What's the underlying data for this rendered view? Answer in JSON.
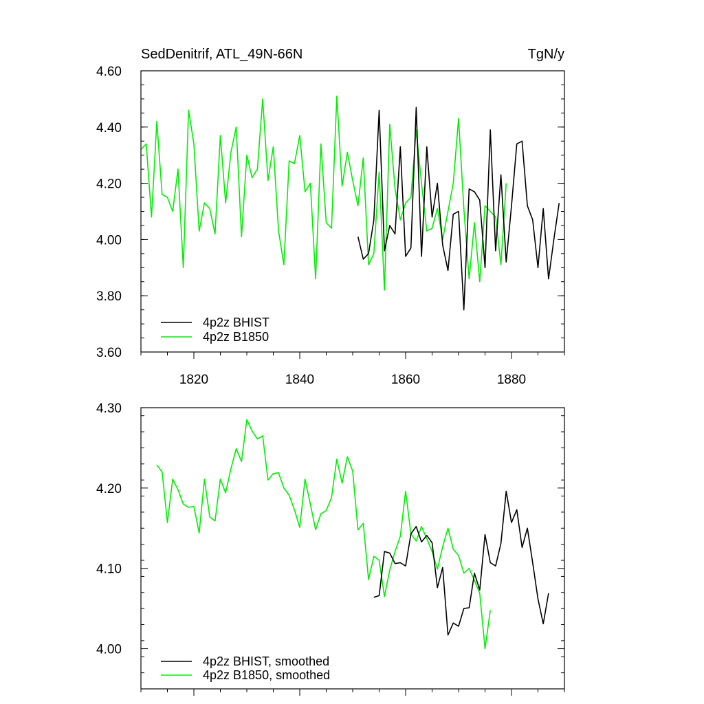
{
  "colors": {
    "bhist": "#000000",
    "b1850": "#00ee00"
  },
  "chart_data": [
    {
      "type": "line",
      "title_left": "SedDenitrif, ATL_49N-66N",
      "title_right": "TgN/y",
      "xlim": [
        1810,
        1890
      ],
      "ylim": [
        3.6,
        4.6
      ],
      "xticks": [
        1820,
        1840,
        1860,
        1880
      ],
      "xtick_labels": [
        "1820",
        "1840",
        "1860",
        "1880"
      ],
      "yticks": [
        3.6,
        3.8,
        4.0,
        4.2,
        4.4,
        4.6
      ],
      "ytick_labels": [
        "3.60",
        "3.80",
        "4.00",
        "4.20",
        "4.40",
        "4.60"
      ],
      "legend_position": "bottom-left",
      "series": [
        {
          "name": "4p2z BHIST",
          "color": "#000000",
          "x": [
            1851,
            1852,
            1853,
            1854,
            1855,
            1856,
            1857,
            1858,
            1859,
            1860,
            1861,
            1862,
            1863,
            1864,
            1865,
            1866,
            1867,
            1868,
            1869,
            1870,
            1871,
            1872,
            1873,
            1874,
            1875,
            1876,
            1877,
            1878,
            1879,
            1880,
            1881,
            1882,
            1883,
            1884,
            1885,
            1886,
            1887,
            1888,
            1889
          ],
          "y": [
            4.01,
            3.93,
            3.95,
            4.07,
            4.46,
            3.96,
            4.05,
            4.02,
            4.33,
            3.94,
            3.97,
            4.47,
            3.94,
            4.33,
            4.08,
            4.2,
            3.98,
            3.89,
            4.09,
            4.1,
            3.75,
            4.18,
            4.17,
            4.14,
            3.9,
            4.39,
            3.96,
            4.23,
            3.92,
            4.12,
            4.34,
            4.35,
            4.12,
            4.07,
            3.9,
            4.11,
            3.86,
            4.0,
            4.13
          ]
        },
        {
          "name": "4p2z B1850",
          "color": "#00ee00",
          "x": [
            1810,
            1811,
            1812,
            1813,
            1814,
            1815,
            1816,
            1817,
            1818,
            1819,
            1820,
            1821,
            1822,
            1823,
            1824,
            1825,
            1826,
            1827,
            1828,
            1829,
            1830,
            1831,
            1832,
            1833,
            1834,
            1835,
            1836,
            1837,
            1838,
            1839,
            1840,
            1841,
            1842,
            1843,
            1844,
            1845,
            1846,
            1847,
            1848,
            1849,
            1850,
            1851,
            1852,
            1853,
            1854,
            1855,
            1856,
            1857,
            1858,
            1859,
            1860,
            1861,
            1862,
            1863,
            1864,
            1865,
            1866,
            1867,
            1868,
            1869,
            1870,
            1871,
            1872,
            1873,
            1874,
            1875,
            1876,
            1877,
            1878,
            1879
          ],
          "y": [
            4.32,
            4.34,
            4.08,
            4.42,
            4.16,
            4.15,
            4.1,
            4.25,
            3.9,
            4.46,
            4.34,
            4.03,
            4.13,
            4.11,
            4.02,
            4.37,
            4.13,
            4.31,
            4.4,
            4.01,
            4.3,
            4.22,
            4.25,
            4.5,
            4.21,
            4.33,
            4.03,
            3.91,
            4.28,
            4.27,
            4.37,
            4.17,
            4.2,
            3.86,
            4.34,
            4.06,
            4.04,
            4.51,
            4.19,
            4.31,
            4.21,
            4.12,
            4.29,
            3.91,
            3.95,
            4.24,
            3.82,
            4.41,
            4.18,
            4.07,
            4.13,
            4.15,
            4.39,
            4.2,
            4.03,
            4.04,
            4.11,
            4.0,
            4.1,
            4.2,
            4.43,
            4.11,
            3.86,
            4.06,
            3.85,
            4.12,
            4.1,
            4.08,
            3.91,
            4.2
          ]
        }
      ]
    },
    {
      "type": "line",
      "xlim": [
        1810,
        1890
      ],
      "ylim": [
        3.95,
        4.3
      ],
      "xticks": [
        1820,
        1840,
        1860,
        1880
      ],
      "yticks": [
        4.0,
        4.1,
        4.2,
        4.3
      ],
      "ytick_labels": [
        "4.00",
        "4.10",
        "4.20",
        "4.30"
      ],
      "legend_position": "bottom-left",
      "series": [
        {
          "name": "4p2z BHIST, smoothed",
          "color": "#000000",
          "x": [
            1854,
            1855,
            1856,
            1857,
            1858,
            1859,
            1860,
            1861,
            1862,
            1863,
            1864,
            1865,
            1866,
            1867,
            1868,
            1869,
            1870,
            1871,
            1872,
            1873,
            1874,
            1875,
            1876,
            1877,
            1878,
            1879,
            1880,
            1881,
            1882,
            1883,
            1884,
            1885,
            1886,
            1887
          ],
          "y": [
            4.064,
            4.066,
            4.121,
            4.119,
            4.106,
            4.107,
            4.103,
            4.143,
            4.152,
            4.133,
            4.141,
            4.132,
            4.076,
            4.101,
            4.017,
            4.032,
            4.028,
            4.05,
            4.051,
            4.094,
            4.073,
            4.142,
            4.107,
            4.103,
            4.131,
            4.196,
            4.157,
            4.173,
            4.126,
            4.15,
            4.107,
            4.062,
            4.031,
            4.069
          ]
        },
        {
          "name": "4p2z B1850, smoothed",
          "color": "#00ee00",
          "x": [
            1813,
            1814,
            1815,
            1816,
            1817,
            1818,
            1819,
            1820,
            1821,
            1822,
            1823,
            1824,
            1825,
            1826,
            1827,
            1828,
            1829,
            1830,
            1831,
            1832,
            1833,
            1834,
            1835,
            1836,
            1837,
            1838,
            1839,
            1840,
            1841,
            1842,
            1843,
            1844,
            1845,
            1846,
            1847,
            1848,
            1849,
            1850,
            1851,
            1852,
            1853,
            1854,
            1855,
            1856,
            1857,
            1858,
            1859,
            1860,
            1861,
            1862,
            1863,
            1864,
            1865,
            1866,
            1867,
            1868,
            1869,
            1870,
            1871,
            1872,
            1873,
            1874,
            1875,
            1876
          ],
          "y": [
            4.229,
            4.22,
            4.157,
            4.211,
            4.198,
            4.18,
            4.176,
            4.177,
            4.144,
            4.211,
            4.164,
            4.159,
            4.211,
            4.194,
            4.224,
            4.249,
            4.233,
            4.285,
            4.271,
            4.261,
            4.265,
            4.21,
            4.218,
            4.219,
            4.2,
            4.191,
            4.173,
            4.151,
            4.211,
            4.18,
            4.148,
            4.168,
            4.172,
            4.188,
            4.236,
            4.206,
            4.239,
            4.221,
            4.148,
            4.156,
            4.086,
            4.115,
            4.11,
            4.065,
            4.098,
            4.121,
            4.14,
            4.196,
            4.143,
            4.134,
            4.152,
            4.137,
            4.121,
            4.099,
            4.127,
            4.15,
            4.124,
            4.116,
            4.094,
            4.1,
            4.085,
            4.069,
            4.0,
            4.048
          ]
        }
      ]
    }
  ]
}
